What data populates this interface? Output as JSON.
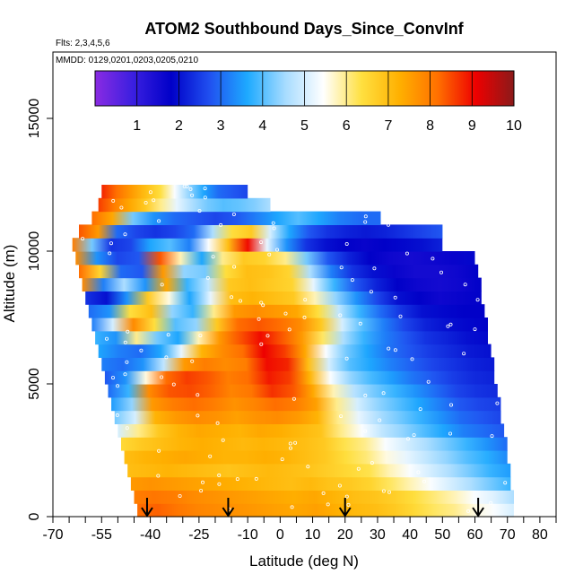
{
  "chart_data": {
    "type": "heatmap",
    "title": "ATOM2 Southbound Days_Since_ConvInf",
    "subtitle_flights": "Flts: 2,3,4,5,6",
    "subtitle_dates": "MMDD: 0129,0201,0203,0205,0210",
    "xlabel": "Latitude (deg N)",
    "ylabel": "Altitude (m)",
    "xlim": [
      -70,
      85
    ],
    "ylim": [
      0,
      17500
    ],
    "x_ticks_major": [
      -70,
      -55,
      -40,
      -25,
      -10,
      0,
      10,
      20,
      30,
      40,
      50,
      60,
      70,
      80
    ],
    "x_ticks_minor": [
      -65,
      -60,
      -50,
      -45,
      -35,
      -30,
      -20,
      -15,
      -5,
      5,
      15,
      25,
      35,
      45,
      55,
      65,
      75,
      85
    ],
    "y_ticks": [
      0,
      5000,
      10000,
      15000
    ],
    "colorbar": {
      "min": 0,
      "max": 10,
      "ticks": [
        1,
        2,
        3,
        4,
        5,
        6,
        7,
        8,
        9,
        10
      ],
      "colors": [
        "#8a2be2",
        "#3a1fe0",
        "#0000c8",
        "#2050f0",
        "#1eaaff",
        "#a8dcff",
        "#ffffff",
        "#ffe040",
        "#ffb000",
        "#ff7000",
        "#ee0000",
        "#8b1a1a"
      ]
    },
    "arrow_latitudes": [
      -41,
      -16,
      20,
      61
    ],
    "bands": [
      {
        "alt": 250,
        "lat": [
          -44,
          72
        ],
        "values": [
          8.2,
          8.3,
          8.1,
          7.9,
          7.8,
          7.7,
          7.6,
          7.5,
          7.4,
          7.5,
          7.3,
          7.1,
          7.0,
          6.8,
          6.5,
          6.2,
          6.0,
          5.6,
          5.4,
          5.0
        ]
      },
      {
        "alt": 750,
        "lat": [
          -45,
          72
        ],
        "values": [
          8.0,
          8.1,
          8.0,
          7.8,
          7.7,
          7.6,
          7.5,
          7.4,
          7.3,
          7.4,
          7.2,
          7.0,
          6.9,
          6.7,
          6.4,
          6.1,
          5.8,
          5.4,
          5.1,
          4.6
        ]
      },
      {
        "alt": 1250,
        "lat": [
          -46,
          71
        ],
        "values": [
          7.6,
          7.7,
          7.6,
          7.5,
          7.4,
          7.3,
          7.2,
          7.1,
          7.0,
          7.1,
          6.9,
          6.8,
          6.6,
          6.2,
          5.8,
          5.4,
          5.0,
          4.6,
          4.2,
          3.8
        ]
      },
      {
        "alt": 1750,
        "lat": [
          -47,
          71
        ],
        "values": [
          7.0,
          7.1,
          7.2,
          7.1,
          7.0,
          6.9,
          7.0,
          7.1,
          7.0,
          6.9,
          6.7,
          6.5,
          6.3,
          5.8,
          5.4,
          5.0,
          4.6,
          4.2,
          3.8,
          3.5
        ]
      },
      {
        "alt": 2250,
        "lat": [
          -48,
          70
        ],
        "values": [
          7.0,
          7.2,
          7.3,
          7.4,
          7.3,
          7.2,
          7.2,
          7.3,
          7.2,
          7.0,
          6.8,
          6.4,
          6.1,
          5.6,
          5.2,
          4.8,
          4.4,
          4.0,
          3.7,
          3.3
        ]
      },
      {
        "alt": 2750,
        "lat": [
          -49,
          70
        ],
        "values": [
          6.5,
          6.8,
          7.0,
          7.2,
          7.3,
          7.2,
          7.1,
          7.2,
          7.1,
          7.0,
          6.8,
          6.3,
          6.0,
          5.4,
          5.0,
          4.6,
          4.2,
          3.8,
          3.4,
          3.0
        ]
      },
      {
        "alt": 3250,
        "lat": [
          -50,
          69
        ],
        "values": [
          5.0,
          6.0,
          6.8,
          7.2,
          7.4,
          7.3,
          7.2,
          7.4,
          7.3,
          7.1,
          6.9,
          6.0,
          5.4,
          4.8,
          4.4,
          4.0,
          3.6,
          3.2,
          3.0,
          2.8
        ]
      },
      {
        "alt": 3750,
        "lat": [
          -51,
          68
        ],
        "values": [
          4.2,
          5.0,
          7.2,
          7.6,
          7.8,
          7.7,
          7.5,
          7.7,
          7.8,
          7.6,
          7.2,
          6.0,
          5.2,
          4.6,
          4.2,
          3.8,
          3.4,
          3.0,
          2.8,
          2.6
        ]
      },
      {
        "alt": 4250,
        "lat": [
          -52,
          68
        ],
        "values": [
          3.5,
          4.4,
          7.6,
          8.0,
          8.2,
          8.0,
          7.7,
          7.9,
          8.2,
          8.0,
          7.5,
          6.0,
          5.0,
          4.4,
          4.0,
          3.6,
          3.2,
          2.8,
          2.6,
          2.5
        ]
      },
      {
        "alt": 4750,
        "lat": [
          -53,
          67
        ],
        "values": [
          3.0,
          3.8,
          7.8,
          8.4,
          8.5,
          8.3,
          7.9,
          8.1,
          8.7,
          8.4,
          7.4,
          5.8,
          4.7,
          4.2,
          3.8,
          3.4,
          3.0,
          2.6,
          2.4,
          2.3
        ]
      },
      {
        "alt": 5250,
        "lat": [
          -54,
          66
        ],
        "values": [
          2.8,
          3.4,
          5.6,
          8.2,
          8.6,
          8.4,
          8.0,
          8.2,
          8.9,
          8.6,
          7.2,
          5.4,
          4.4,
          3.9,
          3.5,
          3.1,
          2.8,
          2.5,
          2.3,
          2.2
        ]
      },
      {
        "alt": 5750,
        "lat": [
          -55,
          66
        ],
        "values": [
          3.2,
          3.0,
          3.4,
          4.8,
          7.6,
          8.0,
          7.8,
          8.0,
          9.0,
          8.8,
          7.0,
          5.0,
          4.0,
          3.6,
          3.2,
          2.9,
          2.6,
          2.4,
          2.2,
          2.1
        ]
      },
      {
        "alt": 6250,
        "lat": [
          -56,
          65
        ],
        "values": [
          3.6,
          3.2,
          3.0,
          3.6,
          5.2,
          7.2,
          7.8,
          8.2,
          9.1,
          8.6,
          7.4,
          5.4,
          4.2,
          3.6,
          3.1,
          2.8,
          2.5,
          2.3,
          2.1,
          2.0
        ]
      },
      {
        "alt": 6750,
        "lat": [
          -57,
          64
        ],
        "values": [
          3.8,
          3.4,
          6.0,
          4.2,
          3.6,
          5.8,
          7.6,
          8.4,
          9.0,
          8.4,
          7.6,
          6.2,
          4.6,
          3.8,
          3.2,
          2.8,
          2.4,
          2.2,
          2.0,
          1.9
        ]
      },
      {
        "alt": 7250,
        "lat": [
          -58,
          64
        ],
        "values": [
          3.2,
          5.0,
          7.8,
          6.4,
          4.0,
          4.4,
          6.8,
          8.2,
          8.4,
          8.2,
          7.8,
          6.8,
          5.0,
          4.0,
          3.2,
          2.6,
          2.2,
          2.0,
          1.9,
          1.8
        ]
      },
      {
        "alt": 7750,
        "lat": [
          -59,
          63
        ],
        "values": [
          3.0,
          3.4,
          6.4,
          7.0,
          4.4,
          3.8,
          6.0,
          7.6,
          7.8,
          7.6,
          7.4,
          6.4,
          4.8,
          3.8,
          3.0,
          2.4,
          2.0,
          1.9,
          1.8,
          1.8
        ]
      },
      {
        "alt": 8250,
        "lat": [
          -60,
          62
        ],
        "values": [
          2.4,
          2.0,
          3.4,
          6.8,
          5.6,
          3.6,
          5.2,
          7.0,
          7.2,
          7.0,
          6.8,
          5.8,
          4.4,
          3.4,
          2.6,
          2.0,
          1.8,
          1.6,
          1.7,
          1.8
        ]
      },
      {
        "alt": 8750,
        "lat": [
          -61,
          62
        ],
        "values": [
          7.8,
          3.2,
          4.6,
          3.4,
          7.4,
          3.8,
          4.8,
          6.8,
          7.0,
          6.8,
          6.6,
          5.2,
          3.8,
          2.8,
          2.2,
          1.8,
          1.6,
          1.5,
          1.6,
          1.8
        ]
      },
      {
        "alt": 9250,
        "lat": [
          -62,
          61
        ],
        "values": [
          8.2,
          6.6,
          3.0,
          2.8,
          7.6,
          4.4,
          4.2,
          6.4,
          7.0,
          6.9,
          6.6,
          4.6,
          3.2,
          2.4,
          2.0,
          1.7,
          1.5,
          1.5,
          1.6,
          1.8
        ]
      },
      {
        "alt": 9750,
        "lat": [
          -63,
          60
        ],
        "values": [
          7.8,
          3.4,
          2.6,
          2.8,
          8.4,
          5.8,
          3.6,
          6.0,
          6.8,
          6.6,
          6.0,
          4.2,
          2.8,
          2.2,
          1.8,
          1.6,
          1.5,
          1.6,
          1.7,
          1.9
        ]
      },
      {
        "alt": 10250,
        "lat": [
          -64,
          50
        ],
        "values": [
          8.0,
          4.2,
          2.4,
          2.6,
          3.6,
          4.0,
          3.2,
          5.4,
          7.0,
          9.0,
          5.2,
          3.4,
          2.4,
          2.0,
          1.8,
          1.7,
          1.8,
          1.9,
          2.0,
          2.2
        ]
      },
      {
        "alt": 10750,
        "lat": [
          -62,
          50
        ],
        "values": [
          8.4,
          7.6,
          3.0,
          2.6,
          2.4,
          2.6,
          3.0,
          4.6,
          6.4,
          6.8,
          5.0,
          3.6,
          2.8,
          2.4,
          2.2,
          2.1,
          2.2,
          2.4,
          2.6,
          2.8
        ]
      },
      {
        "alt": 11250,
        "lat": [
          -58,
          31
        ],
        "values": [
          8.2,
          7.4,
          4.2,
          3.4,
          3.0,
          2.8,
          2.6,
          2.8,
          3.2,
          3.6,
          4.0,
          3.6,
          3.2,
          3.0,
          3.0
        ]
      },
      {
        "alt": 11750,
        "lat": [
          -56,
          -3
        ],
        "values": [
          8.6,
          8.0,
          7.4,
          6.8,
          6.0,
          5.2,
          4.6,
          4.2,
          4.0,
          4.1,
          4.3,
          4.6
        ]
      },
      {
        "alt": 12250,
        "lat": [
          -55,
          -10
        ],
        "values": [
          8.8,
          8.2,
          7.6,
          7.0,
          6.4,
          5.4,
          4.4,
          3.6,
          3.0,
          2.8,
          2.6
        ]
      }
    ]
  }
}
